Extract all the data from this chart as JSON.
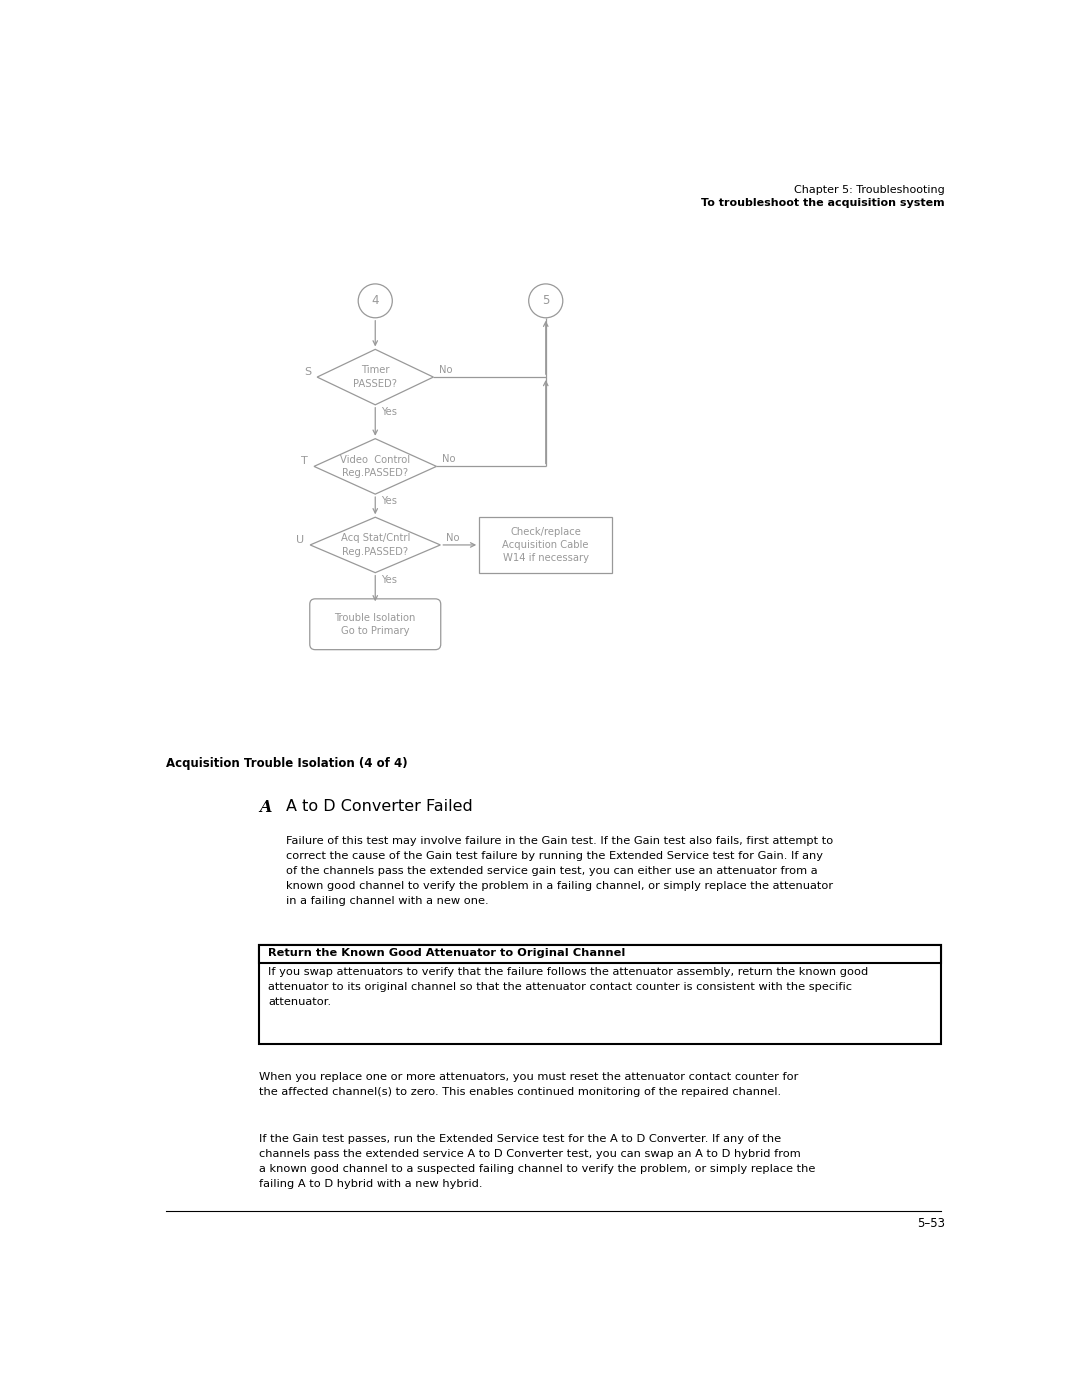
{
  "header_line1": "Chapter 5: Troubleshooting",
  "header_line2": "To troubleshoot the acquisition system",
  "node4_label": "4",
  "node5_label": "5",
  "diamond_S_label": "S",
  "diamond_S_text": "Timer\nPASSED?",
  "diamond_T_label": "T",
  "diamond_T_text": "Video  Control\nReg.PASSED?",
  "diamond_U_label": "U",
  "diamond_U_text": "Acq Stat/Cntrl\nReg.PASSED?",
  "terminal_text": "Trouble Isolation\nGo to Primary",
  "box_text": "Check/replace\nAcquisition Cable\nW14 if necessary",
  "section_label": "Acquisition Trouble Isolation (4 of 4)",
  "subsection_A": "A",
  "subsection_title": "A to D Converter Failed",
  "para1_lines": [
    "Failure of this test may involve failure in the Gain test. If the Gain test also fails, first attempt to",
    "correct the cause of the Gain test failure by running the Extended Service test for Gain. If any",
    "of the channels pass the extended service gain test, you can either use an attenuator from a",
    "known good channel to verify the problem in a failing channel, or simply replace the attenuator",
    "in a failing channel with a new one."
  ],
  "note_title": "Return the Known Good Attenuator to Original Channel",
  "note_body_lines": [
    "If you swap attenuators to verify that the failure follows the attenuator assembly, return the known good",
    "attenuator to its original channel so that the attenuator contact counter is consistent with the specific",
    "attenuator."
  ],
  "para2_lines": [
    "When you replace one or more attenuators, you must reset the attenuator contact counter for",
    "the affected channel(s) to zero. This enables continued monitoring of the repaired channel."
  ],
  "para3_lines": [
    "If the Gain test passes, run the Extended Service test for the A to D Converter. If any of the",
    "channels pass the extended service A to D Converter test, you can swap an A to D hybrid from",
    "a known good channel to a suspected failing channel to verify the problem, or simply replace the",
    "failing A to D hybrid with a new hybrid."
  ],
  "page_number": "5–53",
  "color_diagram": "#999999",
  "color_text": "#000000",
  "color_background": "#ffffff",
  "fig_w": 10.8,
  "fig_h": 13.97,
  "dpi": 100
}
